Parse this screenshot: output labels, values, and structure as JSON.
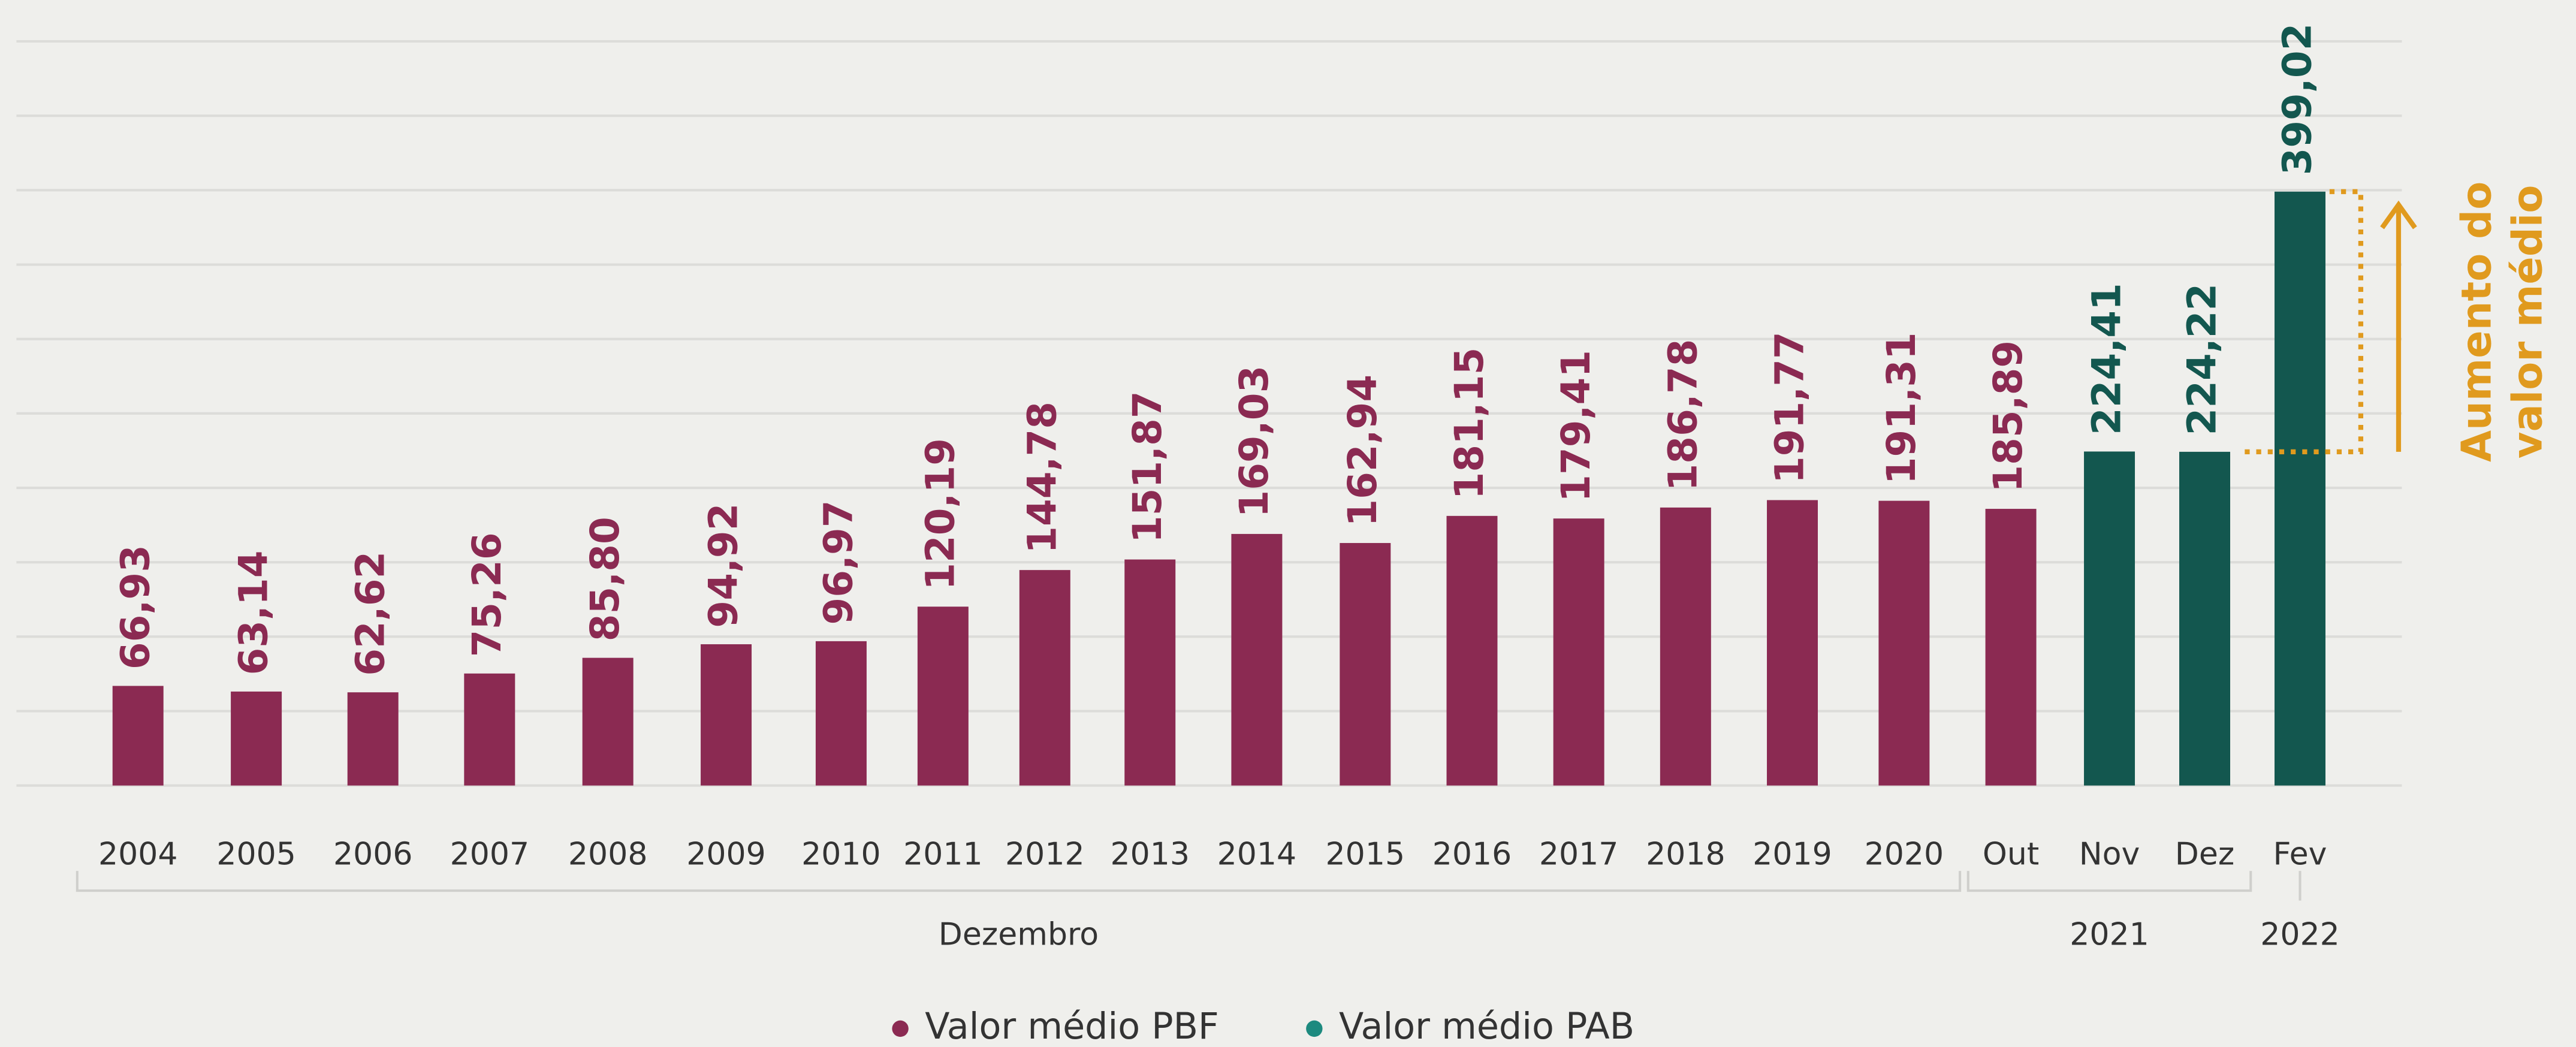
{
  "chart_data": {
    "type": "bar",
    "categories": [
      "2004",
      "2005",
      "2006",
      "2007",
      "2008",
      "2009",
      "2010",
      "2011",
      "2012",
      "2013",
      "2014",
      "2015",
      "2016",
      "2017",
      "2018",
      "2019",
      "2020",
      "Out",
      "Nov",
      "Dez",
      "Fev"
    ],
    "series": [
      {
        "name": "Valor médio PBF",
        "color": "#8b2a52",
        "values": [
          66.93,
          63.14,
          62.62,
          75.26,
          85.8,
          94.92,
          96.97,
          120.19,
          144.78,
          151.87,
          169.03,
          162.94,
          181.15,
          179.41,
          186.78,
          191.77,
          191.31,
          185.89,
          null,
          null,
          null
        ],
        "value_labels": [
          "66,93",
          "63,14",
          "62,62",
          "75,26",
          "85,80",
          "94,92",
          "96,97",
          "120,19",
          "144,78",
          "151,87",
          "169,03",
          "162,94",
          "181,15",
          "179,41",
          "186,78",
          "191,77",
          "191,31",
          "185,89",
          null,
          null,
          null
        ]
      },
      {
        "name": "Valor médio PAB",
        "color": "#13574f",
        "values": [
          null,
          null,
          null,
          null,
          null,
          null,
          null,
          null,
          null,
          null,
          null,
          null,
          null,
          null,
          null,
          null,
          null,
          null,
          224.41,
          224.22,
          399.02
        ],
        "value_labels": [
          null,
          null,
          null,
          null,
          null,
          null,
          null,
          null,
          null,
          null,
          null,
          null,
          null,
          null,
          null,
          null,
          null,
          null,
          "224,41",
          "224,22",
          "399,02"
        ]
      }
    ],
    "groups": [
      "Dezembro",
      "2021",
      "2022"
    ],
    "annotation": [
      "Aumento do",
      "valor médio"
    ],
    "annotation_color": "#e09a1e",
    "ylim": [
      0,
      500
    ],
    "grid": true,
    "yticks": [
      0,
      50,
      100,
      150,
      200,
      250,
      300,
      350,
      400,
      450,
      500
    ]
  }
}
